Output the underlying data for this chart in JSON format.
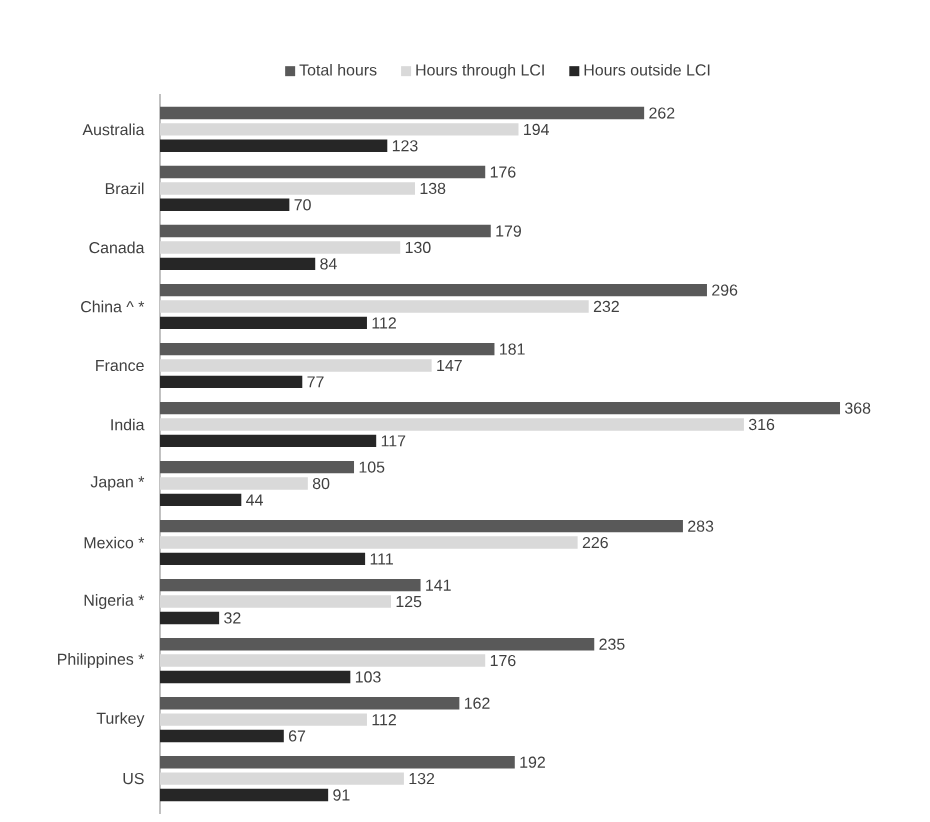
{
  "chart_data": {
    "type": "bar",
    "orientation": "horizontal",
    "categories": [
      "Australia",
      "Brazil",
      "Canada",
      "China ^ *",
      "France",
      "India",
      "Japan *",
      "Mexico *",
      "Nigeria *",
      "Philippines *",
      "Turkey",
      "US"
    ],
    "series": [
      {
        "name": "Total hours",
        "color": "#595959",
        "values": [
          262,
          176,
          179,
          296,
          181,
          368,
          105,
          283,
          141,
          235,
          162,
          192
        ]
      },
      {
        "name": "Hours through LCI",
        "color": "#d9d9d9",
        "values": [
          194,
          138,
          130,
          232,
          147,
          316,
          80,
          226,
          125,
          176,
          112,
          132
        ]
      },
      {
        "name": "Hours outside LCI",
        "color": "#262626",
        "values": [
          123,
          70,
          84,
          112,
          77,
          117,
          44,
          111,
          32,
          103,
          67,
          91
        ]
      }
    ],
    "data_labels": true,
    "legend": "top"
  }
}
